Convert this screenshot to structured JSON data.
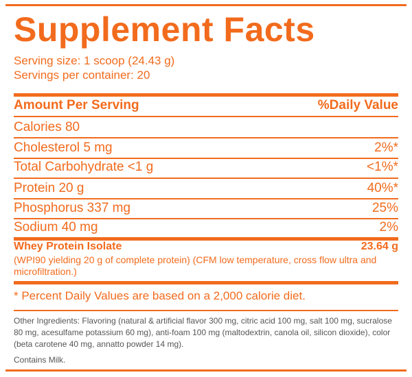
{
  "title": "Supplement Facts",
  "serving": {
    "size": "Serving size: 1 scoop (24.43 g)",
    "per_container": "Servings per container: 20"
  },
  "header": {
    "amount": "Amount Per Serving",
    "daily_value": "%Daily Value"
  },
  "nutrients": [
    {
      "name": "Calories 80",
      "dv": ""
    },
    {
      "name": "Cholesterol  5 mg",
      "dv": "2%*"
    },
    {
      "name": "Total Carbohydrate  <1 g",
      "dv": "<1%*"
    },
    {
      "name": "Protein  20 g",
      "dv": "40%*"
    },
    {
      "name": "Phosphorus  337 mg",
      "dv": "25%"
    },
    {
      "name": "Sodium  40 mg",
      "dv": "2%"
    }
  ],
  "whey": {
    "name": "Whey Protein Isolate",
    "amount": "23.64 g",
    "description": "(WPI90 yielding 20 g of complete protein) (CFM low temperature, cross flow ultra and microfiltration.)"
  },
  "footnote": "* Percent Daily Values are based on a 2,000 calorie diet.",
  "other_ingredients": "Other Ingredients: Flavoring (natural & artificial flavor 300 mg, citric acid 100 mg, salt 100 mg,  sucralose 80 mg, acesulfame potassium 60 mg), anti-foam 100 mg (maltodextrin, canola oil, silicon dioxide), color (beta carotene 40 mg, annatto powder 14 mg).",
  "contains": "Contains Milk."
}
